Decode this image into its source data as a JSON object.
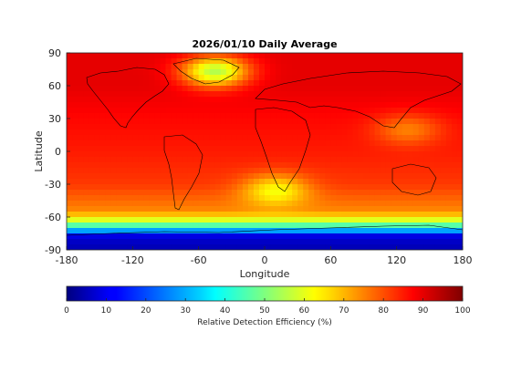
{
  "chart_data": {
    "type": "heatmap",
    "title": "2026/01/10 Daily Average",
    "xlabel": "Longitude",
    "ylabel": "Latitude",
    "xlim": [
      -180,
      180
    ],
    "ylim": [
      -90,
      90
    ],
    "xticks": [
      "-180",
      "-120",
      "-60",
      "0",
      "60",
      "120",
      "180"
    ],
    "yticks": [
      "90",
      "60",
      "30",
      "0",
      "-30",
      "-60",
      "-90"
    ],
    "colorbar": {
      "label": "Relative Detection Efficiency (%)",
      "range": [
        0,
        100
      ],
      "ticks": [
        "0",
        "10",
        "20",
        "30",
        "40",
        "50",
        "60",
        "70",
        "80",
        "90",
        "100"
      ],
      "colormap": "jet",
      "placement": "bottom"
    },
    "field": {
      "description_units": "percent",
      "lat_bands": [
        {
          "lat": 90,
          "value": 90
        },
        {
          "lat": 60,
          "value": 90
        },
        {
          "lat": 30,
          "value": 87
        },
        {
          "lat": 0,
          "value": 85
        },
        {
          "lat": -30,
          "value": 82
        },
        {
          "lat": -55,
          "value": 74
        },
        {
          "lat": -65,
          "value": 55
        },
        {
          "lat": -72,
          "value": 30
        },
        {
          "lat": -78,
          "value": 8
        },
        {
          "lat": -90,
          "value": 5
        }
      ],
      "features": [
        {
          "lon": -45,
          "lat": 73,
          "value": 55,
          "note": "Greenland low region"
        },
        {
          "lon": 10,
          "lat": -35,
          "value": 62,
          "note": "South Atlantic lower region"
        },
        {
          "lon": 130,
          "lat": 20,
          "value": 75,
          "note": "West Pacific lower region"
        }
      ]
    },
    "grid": false
  },
  "colors": {
    "axis": "#262626",
    "coastline": "#000000"
  }
}
